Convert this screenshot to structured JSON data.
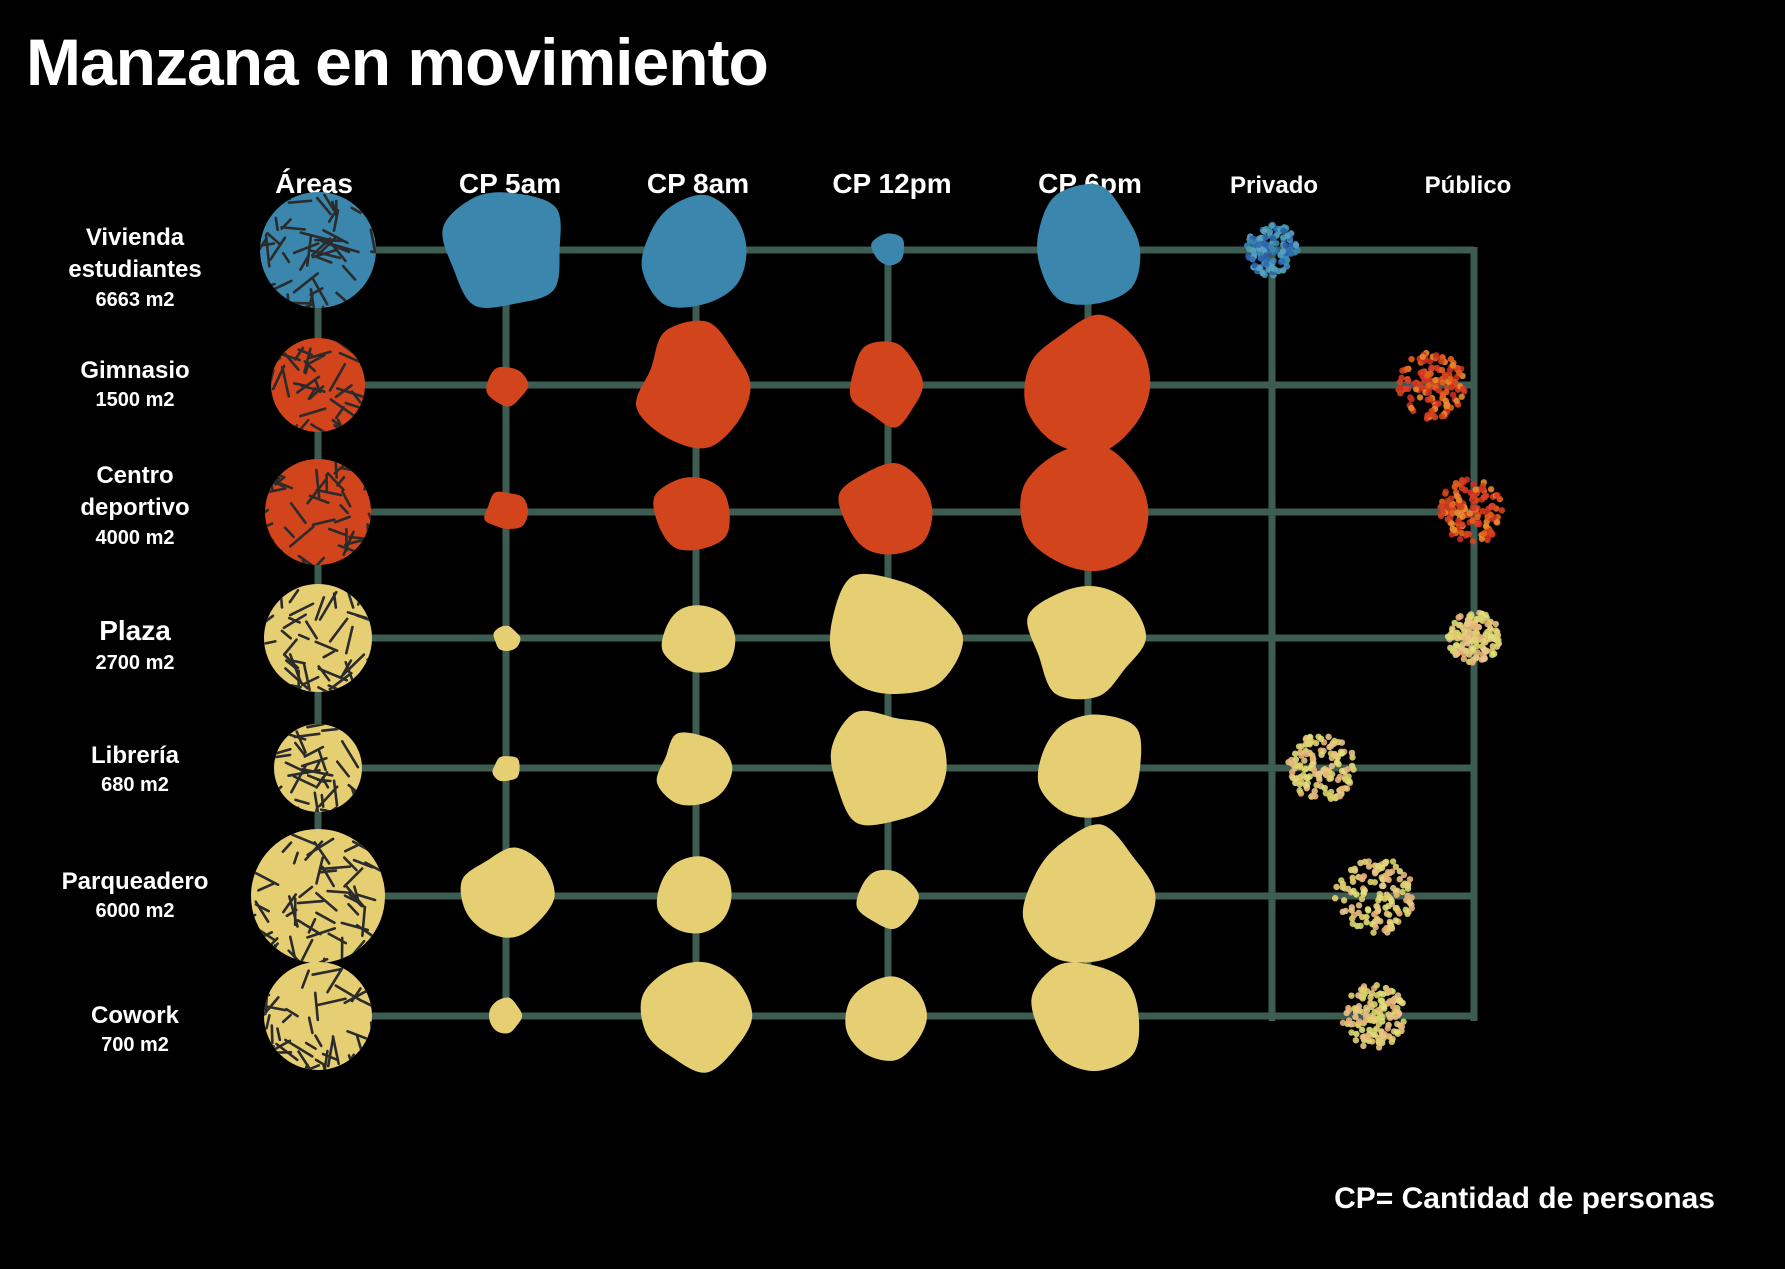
{
  "title": "Manzana en movimiento",
  "columns": {
    "areas": "Áreas",
    "cp5": "CP 5am",
    "cp8": "CP 8am",
    "cp12": "CP 12pm",
    "cp6": "CP 6pm",
    "privado": "Privado",
    "publico": "Público"
  },
  "rows": [
    {
      "name": "Vivienda estudiantes",
      "area": "6663 m2",
      "color": "#3a86ad",
      "cp5": 0.9,
      "cp8": 0.85,
      "cp12": 0.25,
      "cp6": 0.9,
      "access": "privado"
    },
    {
      "name": "Gimnasio",
      "area": "1500 m2",
      "color": "#d2441b",
      "cp5": 0.3,
      "cp8": 0.85,
      "cp12": 0.6,
      "cp6": 1.0,
      "access": "publico"
    },
    {
      "name": "Centro deportivo",
      "area": "4000 m2",
      "color": "#d2441b",
      "cp5": 0.3,
      "cp8": 0.6,
      "cp12": 0.7,
      "cp6": 1.0,
      "access": "publico"
    },
    {
      "name": "Plaza",
      "area": "2700 m2",
      "color": "#e6cf73",
      "cp5": 0.2,
      "cp8": 0.55,
      "cp12": 1.0,
      "cp6": 0.85,
      "access": "publico"
    },
    {
      "name": "Librería",
      "area": "680 m2",
      "color": "#e6cf73",
      "cp5": 0.2,
      "cp8": 0.55,
      "cp12": 0.85,
      "cp6": 0.85,
      "access": "privado"
    },
    {
      "name": "Parqueadero",
      "area": "6000 m2",
      "color": "#e6cf73",
      "cp5": 0.65,
      "cp8": 0.6,
      "cp12": 0.45,
      "cp6": 1.0,
      "access": "publico"
    },
    {
      "name": "Cowork",
      "area": "700 m2",
      "color": "#e6cf73",
      "cp5": 0.25,
      "cp8": 0.8,
      "cp12": 0.65,
      "cp6": 0.85,
      "access": "publico"
    }
  ],
  "footnote": "CP= Cantidad de personas",
  "colors": {
    "grid": "#3d5d52",
    "blue": "#3a86ad",
    "red": "#d2441b",
    "yellow": "#e6cf73",
    "texture": "#2b2b2b"
  }
}
